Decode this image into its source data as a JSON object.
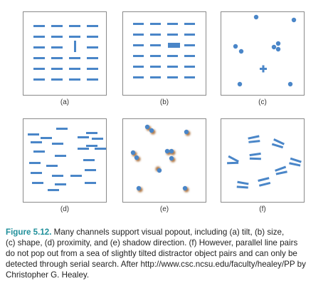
{
  "colors": {
    "glyph": "#4a86c8",
    "shadow": "#b07a4a",
    "border": "#8a8a8a",
    "figure_label": "#1f8f9a"
  },
  "panels": [
    {
      "id": "a",
      "label": "(a)"
    },
    {
      "id": "b",
      "label": "(b)"
    },
    {
      "id": "c",
      "label": "(c)"
    },
    {
      "id": "d",
      "label": "(d)"
    },
    {
      "id": "e",
      "label": "(e)"
    },
    {
      "id": "f",
      "label": "(f)"
    }
  ],
  "caption": {
    "figure_label": "Figure 5.12.",
    "line1": "Many channels support visual popout, including (a) tilt, (b) size,",
    "line2": "(c) shape, (d) proximity, and (e) shadow direction. (f) However, parallel line pairs",
    "line3": "do not pop out from a sea of slightly tilted distractor object pairs and can only be",
    "line4": "detected through serial search. After http://www.csc.ncsu.edu/faculty/healey/PP by",
    "line5": "Christopher G. Healey."
  }
}
